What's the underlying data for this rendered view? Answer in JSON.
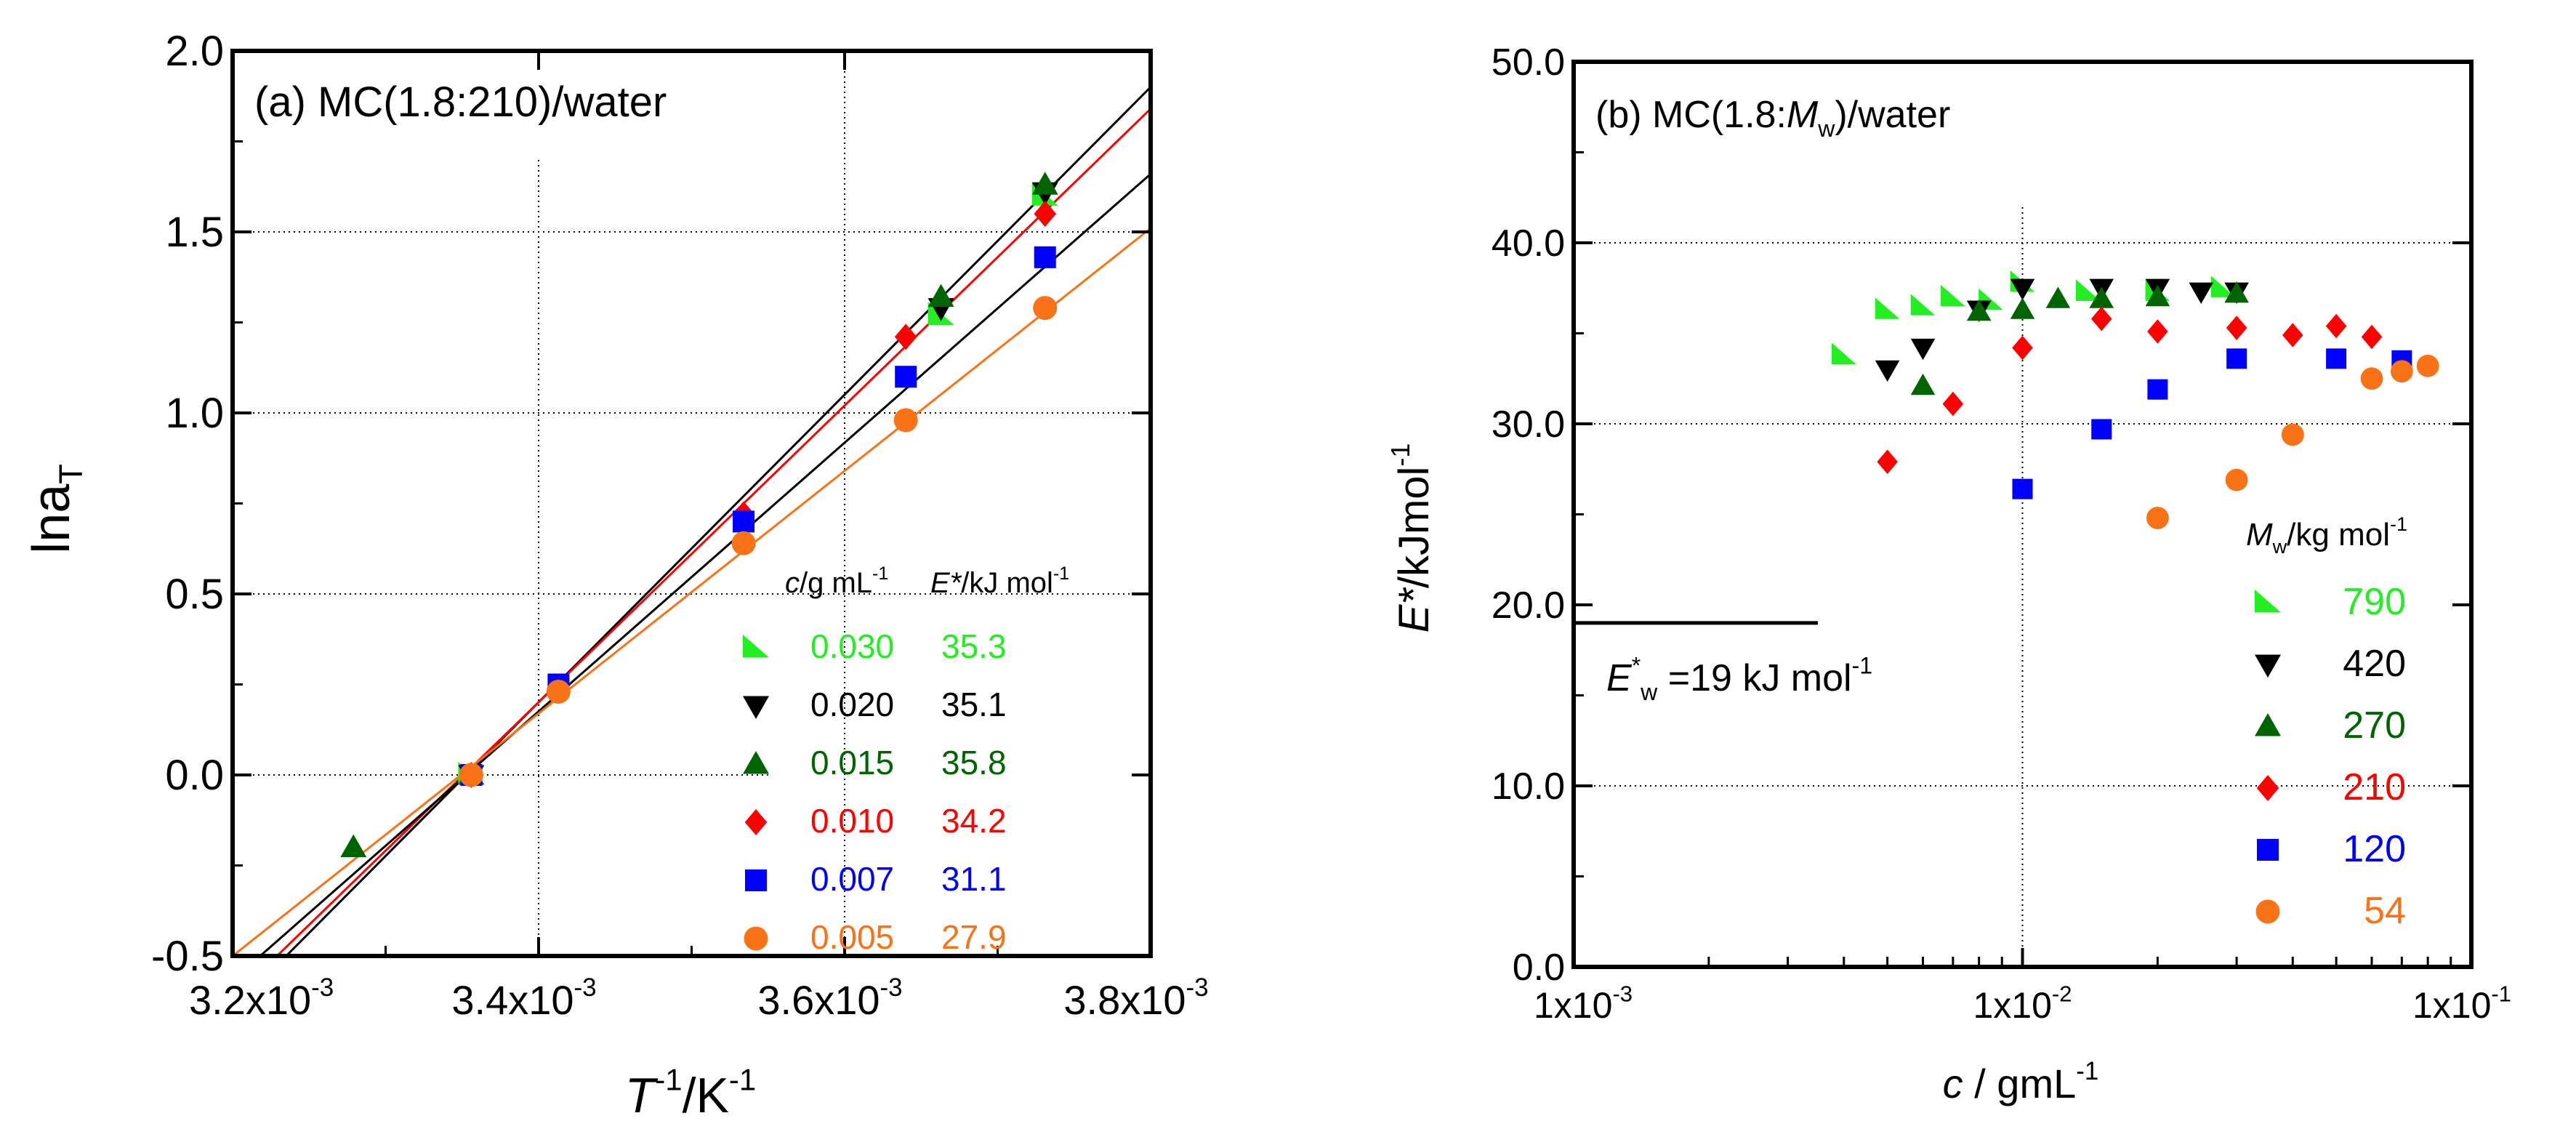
{
  "chart_data": [
    {
      "type": "scatter",
      "panel_label": "(a) MC(1.8:210)/water",
      "xlabel_main": "T",
      "xlabel_tail": "/K",
      "xlabel_exp": "-1",
      "ylabel_main": "lna",
      "ylabel_sub": "T",
      "xlim": [
        0.0032,
        0.0038
      ],
      "ylim": [
        -0.5,
        2.0
      ],
      "x_ticks": [
        0.0032,
        0.0034,
        0.0036,
        0.0038
      ],
      "x_tick_mantissa": [
        "3.2x10",
        "3.4x10",
        "3.6x10",
        "3.8x10"
      ],
      "x_tick_exponent": "-3",
      "y_ticks": [
        -0.5,
        0.0,
        0.5,
        1.0,
        1.5,
        2.0
      ],
      "y_tick_labels": [
        "-0.5",
        "0.0",
        "0.5",
        "1.0",
        "1.5",
        "2.0"
      ],
      "legend_header": {
        "c_symbol": "c",
        "c_unit": "/g mL",
        "c_exp": "-1",
        "e_symbol": "E*",
        "e_unit": "/kJ mol",
        "e_exp": "-1"
      },
      "series": [
        {
          "name": "0.030",
          "E": "35.3",
          "color": "#22ee22",
          "marker": "tri-right",
          "x": [
            0.003356,
            0.003663,
            0.003731
          ],
          "y": [
            0.0,
            1.27,
            1.6
          ]
        },
        {
          "name": "0.020",
          "E": "35.1",
          "color": "#000000",
          "marker": "tri-down",
          "x": [
            0.003356,
            0.003663,
            0.003731
          ],
          "y": [
            0.0,
            1.29,
            1.61
          ]
        },
        {
          "name": "0.015",
          "E": "35.8",
          "color": "#006400",
          "marker": "tri-up",
          "x": [
            0.003279,
            0.003356,
            0.003663,
            0.003731
          ],
          "y": [
            -0.2,
            0.0,
            1.32,
            1.63
          ]
        },
        {
          "name": "0.010",
          "E": "34.2",
          "color": "#ff0000",
          "marker": "diamond",
          "x": [
            0.003356,
            0.003413,
            0.003534,
            0.00364,
            0.003731
          ],
          "y": [
            0.0,
            0.24,
            0.72,
            1.21,
            1.55
          ]
        },
        {
          "name": "0.007",
          "E": "31.1",
          "color": "#0000ff",
          "marker": "square",
          "x": [
            0.003356,
            0.003413,
            0.003534,
            0.00364,
            0.003731
          ],
          "y": [
            0.0,
            0.25,
            0.7,
            1.1,
            1.43
          ]
        },
        {
          "name": "0.005",
          "E": "27.9",
          "color": "#f97316",
          "marker": "circle",
          "x": [
            0.003356,
            0.003413,
            0.003534,
            0.00364,
            0.003731
          ],
          "y": [
            0.0,
            0.23,
            0.64,
            0.98,
            1.29
          ]
        }
      ],
      "fit_lines": [
        {
          "color": "#000000",
          "x": [
            0.003235,
            0.0038
          ],
          "y": [
            -0.5,
            1.9
          ]
        },
        {
          "color": "#ff0000",
          "x": [
            0.003229,
            0.0038
          ],
          "y": [
            -0.5,
            1.84
          ]
        },
        {
          "color": "#000000",
          "x": [
            0.003218,
            0.0038
          ],
          "y": [
            -0.5,
            1.66
          ]
        },
        {
          "color": "#f97316",
          "x": [
            0.0032,
            0.0038
          ],
          "y": [
            -0.5,
            1.51
          ]
        }
      ]
    },
    {
      "type": "scatter",
      "panel_label_main": "(b) MC(1.8:",
      "panel_label_italic": "M",
      "panel_label_sub": "w",
      "panel_label_tail": ")/water",
      "x_scale": "log",
      "xlabel_main": "c",
      "xlabel_tail": " / gmL",
      "xlabel_exp": "-1",
      "ylabel_main": "E*",
      "ylabel_tail": "/kJmol",
      "ylabel_exp": "-1",
      "xlim": [
        0.001,
        0.1
      ],
      "ylim": [
        0.0,
        50.0
      ],
      "x_ticks": [
        0.001,
        0.01,
        0.1
      ],
      "x_tick_mantissa": [
        "1x10",
        "1x10",
        "1x10"
      ],
      "x_tick_exponents": [
        "-3",
        "-2",
        "-1"
      ],
      "y_ticks": [
        0,
        10,
        20,
        30,
        40,
        50
      ],
      "y_tick_labels": [
        "0.0",
        "10.0",
        "20.0",
        "30.0",
        "40.0",
        "50.0"
      ],
      "reference_line": {
        "y": 19.0,
        "x_range": [
          0.001,
          0.0035
        ],
        "symbol": "E",
        "sup": "*",
        "sub": "w",
        "label_tail": " =19 kJ mol",
        "label_exp": "-1"
      },
      "legend_title": {
        "symbol": "M",
        "sub": "w",
        "unit": "/kg mol",
        "exp": "-1"
      },
      "series": [
        {
          "name": "790",
          "color": "#22ee22",
          "marker": "tri-right",
          "x": [
            0.004,
            0.005,
            0.006,
            0.007,
            0.0085,
            0.01,
            0.014,
            0.02,
            0.028
          ],
          "y": [
            33.8,
            36.3,
            36.5,
            37.0,
            36.8,
            37.8,
            37.3,
            37.3,
            37.5
          ]
        },
        {
          "name": "420",
          "color": "#000000",
          "marker": "tri-down",
          "x": [
            0.005,
            0.006,
            0.008,
            0.01,
            0.015,
            0.02,
            0.025,
            0.03
          ],
          "y": [
            33.0,
            34.2,
            36.3,
            37.5,
            37.5,
            37.5,
            37.3,
            37.3
          ]
        },
        {
          "name": "270",
          "color": "#006400",
          "marker": "tri-up",
          "x": [
            0.006,
            0.008,
            0.01,
            0.012,
            0.015,
            0.02,
            0.03
          ],
          "y": [
            32.1,
            36.2,
            36.3,
            36.9,
            36.9,
            37.0,
            37.2
          ]
        },
        {
          "name": "210",
          "color": "#ff0000",
          "marker": "diamond",
          "x": [
            0.005,
            0.007,
            0.01,
            0.015,
            0.02,
            0.03,
            0.04,
            0.05,
            0.06
          ],
          "y": [
            27.9,
            31.1,
            34.2,
            35.8,
            35.1,
            35.3,
            34.9,
            35.4,
            34.8
          ]
        },
        {
          "name": "120",
          "color": "#0000ff",
          "marker": "square",
          "x": [
            0.01,
            0.015,
            0.02,
            0.03,
            0.05,
            0.07
          ],
          "y": [
            26.4,
            29.7,
            31.9,
            33.6,
            33.6,
            33.5
          ]
        },
        {
          "name": "54",
          "color": "#f97316",
          "marker": "circle",
          "x": [
            0.02,
            0.03,
            0.04,
            0.06,
            0.07,
            0.08
          ],
          "y": [
            24.8,
            26.9,
            29.4,
            32.5,
            32.9,
            33.2
          ]
        }
      ]
    }
  ]
}
